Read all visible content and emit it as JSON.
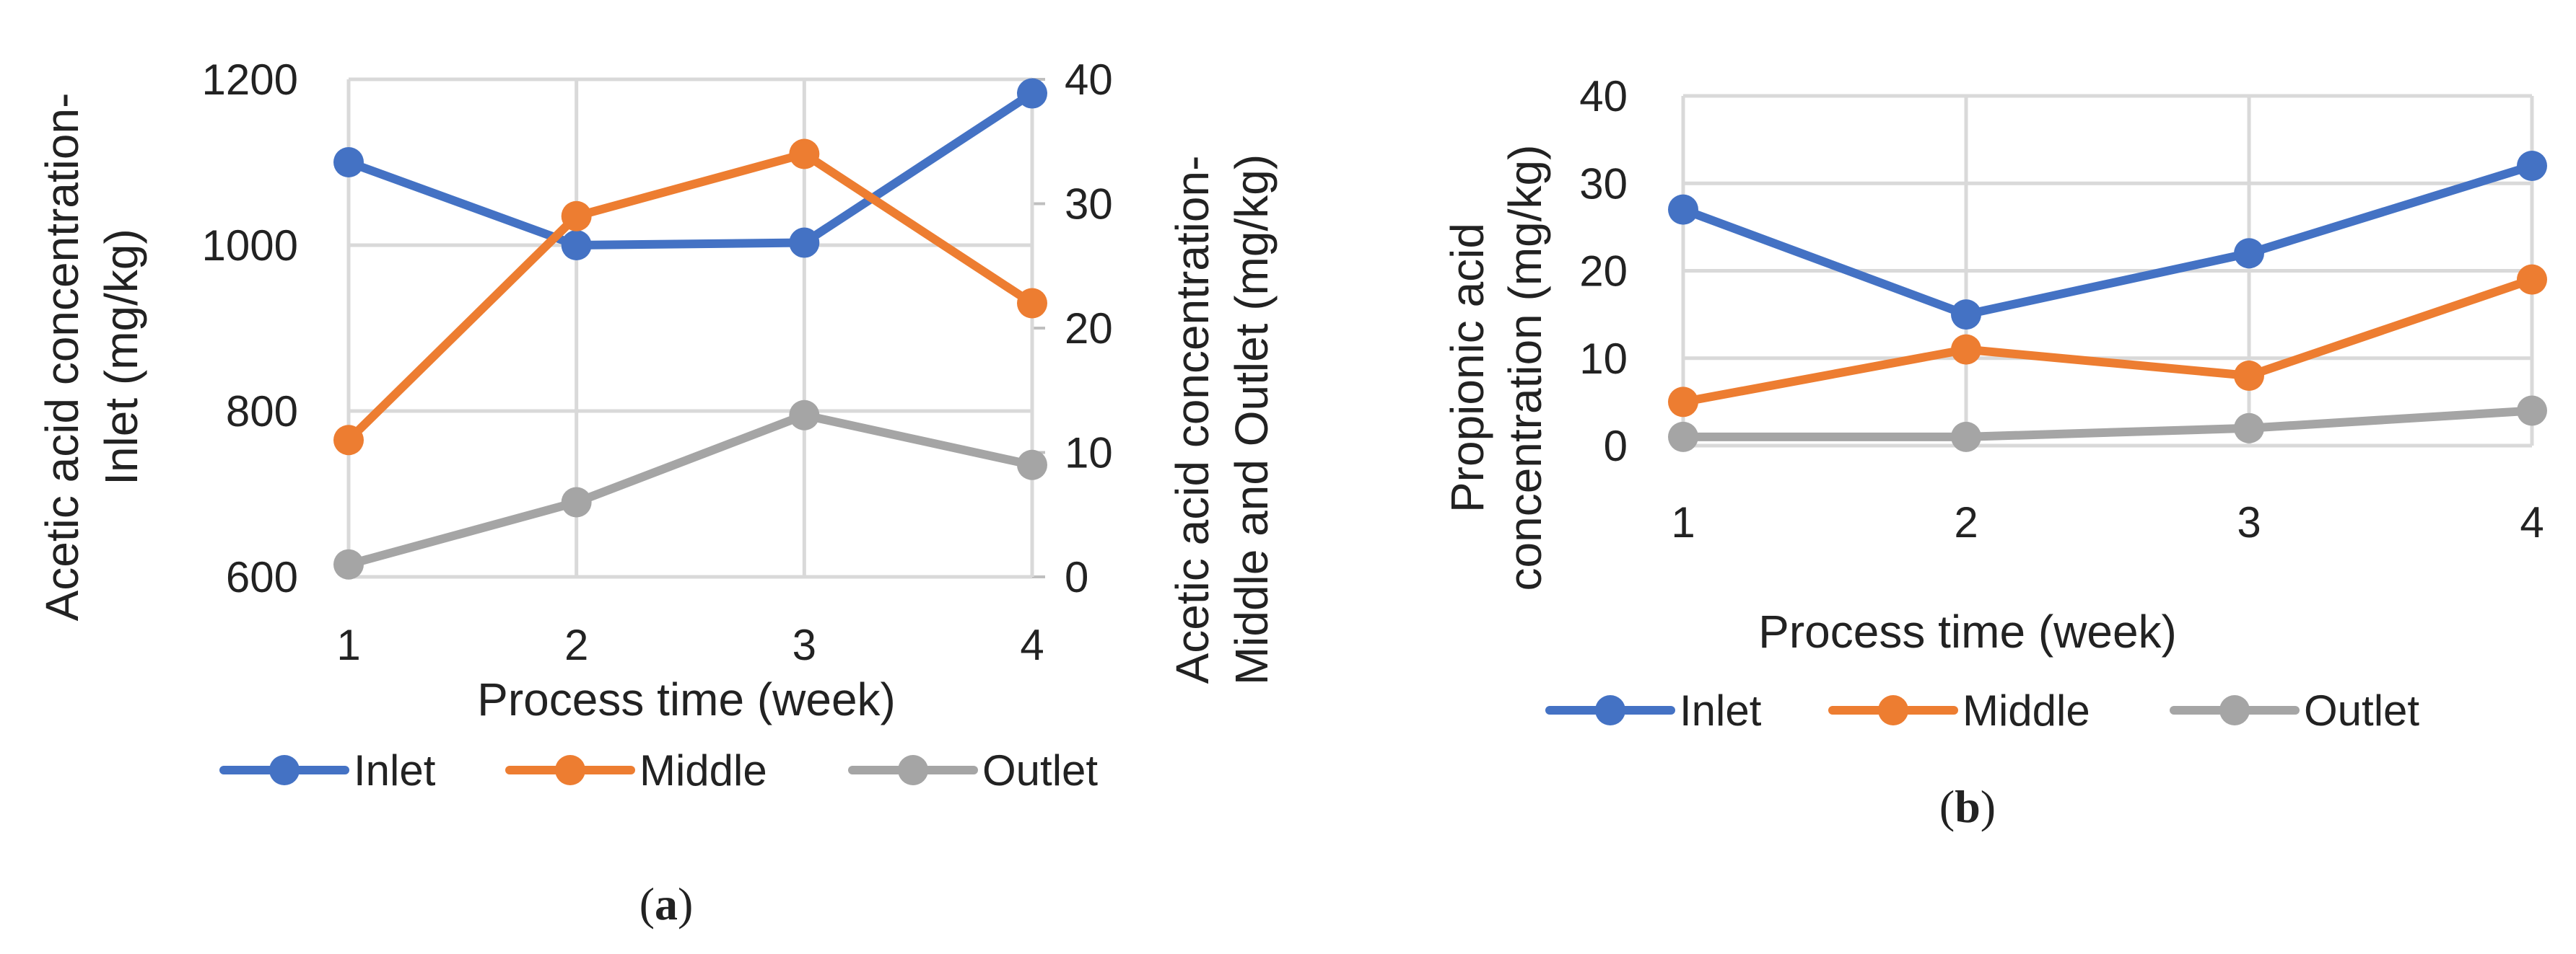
{
  "chart_data": [
    {
      "panel": "(a)",
      "panel_letter": "a",
      "type": "line",
      "categories": [
        "1",
        "2",
        "3",
        "4"
      ],
      "xlabel": "Process time (week)",
      "ylabel_left": [
        "Acetic acid concentration-",
        "Inlet (mg/kg)"
      ],
      "ylabel_right": [
        "Acetic acid concentration-",
        "Middle and Outlet (mg/kg)"
      ],
      "ylim_left": [
        600,
        1200
      ],
      "yticks_left": [
        600,
        800,
        1000,
        1200
      ],
      "ylim_right": [
        0,
        40
      ],
      "yticks_right": [
        0,
        10,
        20,
        30,
        40
      ],
      "grid": true,
      "legend_position": "bottom",
      "series": [
        {
          "name": "Inlet",
          "axis": "left",
          "color": "#4472C4",
          "values": [
            1100,
            1000,
            1003,
            1183
          ]
        },
        {
          "name": "Middle",
          "axis": "right",
          "color": "#ED7D31",
          "values": [
            11,
            29,
            34,
            22
          ]
        },
        {
          "name": "Outlet",
          "axis": "right",
          "color": "#A5A5A5",
          "values": [
            1,
            6,
            13,
            9
          ]
        }
      ]
    },
    {
      "panel": "(b)",
      "panel_letter": "b",
      "type": "line",
      "categories": [
        "1",
        "2",
        "3",
        "4"
      ],
      "xlabel": "Process time (week)",
      "ylabel": [
        "Propionic acid",
        "concentration (mg/kg)"
      ],
      "ylim": [
        0,
        40
      ],
      "yticks": [
        0,
        10,
        20,
        30,
        40
      ],
      "grid": true,
      "legend_position": "bottom",
      "series": [
        {
          "name": "Inlet",
          "color": "#4472C4",
          "values": [
            27,
            15,
            22,
            32
          ]
        },
        {
          "name": "Middle",
          "color": "#ED7D31",
          "values": [
            5,
            11,
            8,
            19
          ]
        },
        {
          "name": "Outlet",
          "color": "#A5A5A5",
          "values": [
            1,
            1,
            2,
            4
          ]
        }
      ]
    }
  ]
}
